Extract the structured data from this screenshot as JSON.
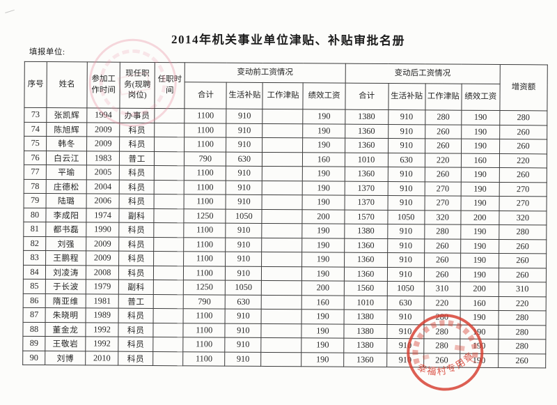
{
  "page": {
    "title": "2014年机关事业单位津贴、补贴审批名册",
    "report_unit_label": "填报单位:"
  },
  "table": {
    "headers": {
      "index": "序号",
      "name": "姓名",
      "work_start": "参加工作时间",
      "position": "现任职务(现聘岗位)",
      "tenure": "任职时间",
      "before_group": "变动前工资情况",
      "after_group": "变动后工资情况",
      "subtotal": "合计",
      "living_subsidy": "生活补贴",
      "work_allowance": "工作津贴",
      "performance_pay": "绩效工资",
      "increase": "增资额"
    },
    "field_names": [
      "index",
      "name",
      "work_start",
      "position",
      "tenure",
      "before_total",
      "before_living",
      "before_work",
      "before_perf",
      "after_total",
      "after_living",
      "after_work",
      "after_perf",
      "increase"
    ],
    "rows": [
      [
        "73",
        "张凯辉",
        "1994",
        "办事员",
        "",
        "1100",
        "910",
        "",
        "190",
        "1380",
        "910",
        "280",
        "190",
        "280"
      ],
      [
        "74",
        "陈旭辉",
        "2009",
        "科员",
        "",
        "1100",
        "910",
        "",
        "190",
        "1360",
        "910",
        "260",
        "190",
        "260"
      ],
      [
        "75",
        "韩冬",
        "2009",
        "科员",
        "",
        "1100",
        "910",
        "",
        "190",
        "1360",
        "910",
        "260",
        "190",
        "260"
      ],
      [
        "76",
        "白云江",
        "1983",
        "普工",
        "",
        "790",
        "630",
        "",
        "160",
        "1010",
        "630",
        "220",
        "160",
        "220"
      ],
      [
        "77",
        "平瑜",
        "2005",
        "科员",
        "",
        "1100",
        "910",
        "",
        "190",
        "1360",
        "910",
        "260",
        "190",
        "260"
      ],
      [
        "78",
        "庄德松",
        "2004",
        "科员",
        "",
        "1100",
        "910",
        "",
        "190",
        "1370",
        "910",
        "270",
        "190",
        "270"
      ],
      [
        "79",
        "陆璐",
        "2006",
        "科员",
        "",
        "1100",
        "910",
        "",
        "190",
        "1370",
        "910",
        "270",
        "190",
        "270"
      ],
      [
        "80",
        "李成阳",
        "1974",
        "副科",
        "",
        "1250",
        "1050",
        "",
        "200",
        "1570",
        "1050",
        "320",
        "200",
        "320"
      ],
      [
        "81",
        "都书磊",
        "1990",
        "科员",
        "",
        "1100",
        "910",
        "",
        "190",
        "1380",
        "910",
        "280",
        "190",
        "280"
      ],
      [
        "82",
        "刘强",
        "2009",
        "科员",
        "",
        "1100",
        "910",
        "",
        "190",
        "1360",
        "910",
        "260",
        "190",
        "260"
      ],
      [
        "83",
        "王鹏程",
        "2009",
        "科员",
        "",
        "1100",
        "910",
        "",
        "190",
        "1360",
        "910",
        "260",
        "190",
        "260"
      ],
      [
        "84",
        "刘凌涛",
        "2008",
        "科员",
        "",
        "1100",
        "910",
        "",
        "190",
        "1360",
        "910",
        "260",
        "190",
        "260"
      ],
      [
        "85",
        "于长波",
        "1979",
        "副科",
        "",
        "1250",
        "1050",
        "",
        "200",
        "1560",
        "1050",
        "310",
        "200",
        "310"
      ],
      [
        "86",
        "隋亚维",
        "1981",
        "普工",
        "",
        "790",
        "630",
        "",
        "160",
        "1010",
        "630",
        "220",
        "160",
        "220"
      ],
      [
        "87",
        "朱晓明",
        "1989",
        "科员",
        "",
        "1100",
        "910",
        "",
        "190",
        "1380",
        "910",
        "280",
        "190",
        "280"
      ],
      [
        "88",
        "董金龙",
        "1992",
        "科员",
        "",
        "1100",
        "910",
        "",
        "190",
        "1380",
        "910",
        "280",
        "190",
        "280"
      ],
      [
        "89",
        "王敬岩",
        "1992",
        "科员",
        "",
        "1100",
        "910",
        "",
        "190",
        "1380",
        "910",
        "280",
        "190",
        "280"
      ],
      [
        "90",
        "刘博",
        "2010",
        "科员",
        "",
        "1100",
        "910",
        "",
        "190",
        "1360",
        "910",
        "260",
        "190",
        "260"
      ]
    ]
  },
  "stamps": {
    "seal_visible_text": "幸福村专用章"
  },
  "colors": {
    "seal_red": "#d63c2e",
    "faint_stamp_pink": "#e88a9e",
    "paper": "#fcfcfa"
  }
}
